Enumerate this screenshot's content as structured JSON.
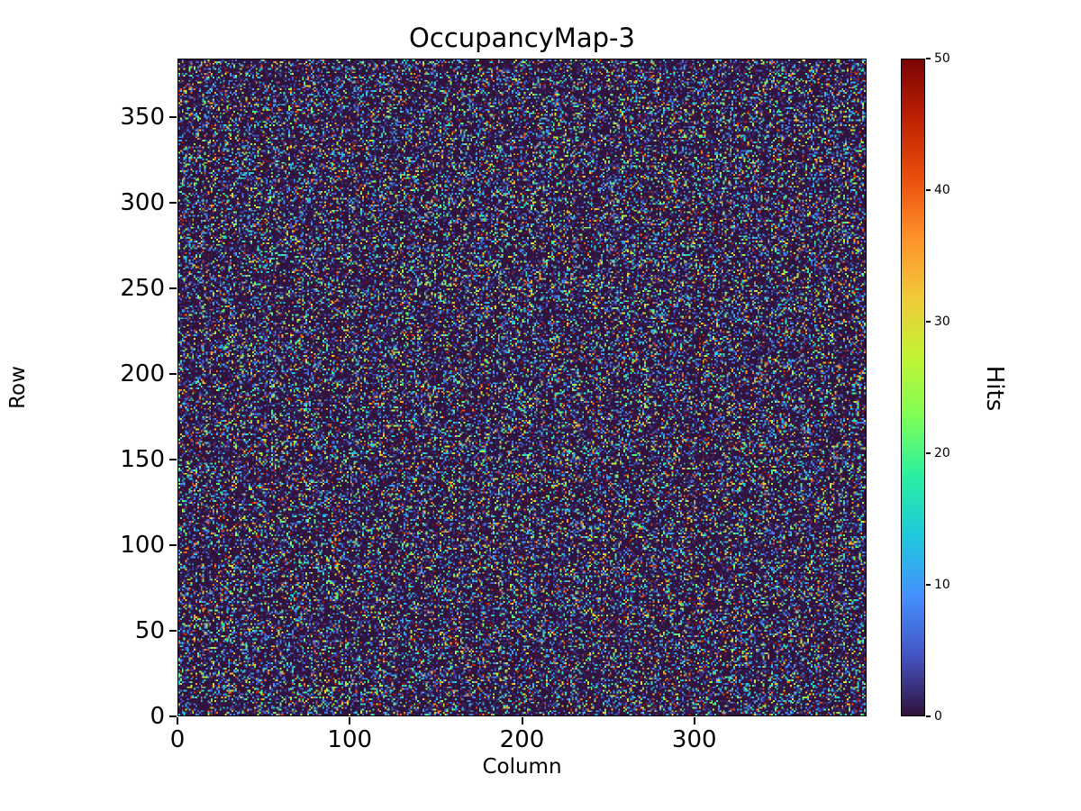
{
  "figure": {
    "background_color": "#ffffff",
    "text_color": "#000000"
  },
  "chart_data": {
    "type": "heatmap",
    "title": "OccupancyMap-3",
    "xlabel": "Column",
    "ylabel": "Row",
    "colorbar_label": "Hits",
    "x_range": [
      0,
      400
    ],
    "y_range": [
      0,
      384
    ],
    "grid_cols": 400,
    "grid_rows": 384,
    "x_ticks": [
      0,
      100,
      200,
      300
    ],
    "y_ticks": [
      0,
      50,
      100,
      150,
      200,
      250,
      300,
      350
    ],
    "colorbar_ticks": [
      0,
      10,
      20,
      30,
      40,
      50
    ],
    "value_range": [
      0,
      50
    ],
    "colormap": "turbo",
    "colormap_stops": [
      "#30123b",
      "#4454c4",
      "#4490fe",
      "#1fc8de",
      "#29efa2",
      "#7dff56",
      "#c1f334",
      "#f1ca3a",
      "#fe922a",
      "#ea4f0d",
      "#be2102",
      "#7a0403"
    ],
    "data_description": "Pixel-detector occupancy map: 400x384 grid of hit counts 0-50; mostly near-zero (dark) background with dense random speckles of higher hit counts across the full color range, red (~50 hits) being rarest.",
    "noise_seed": 1337,
    "noise_power": 9,
    "grid": false,
    "legend": "colorbar-right"
  }
}
